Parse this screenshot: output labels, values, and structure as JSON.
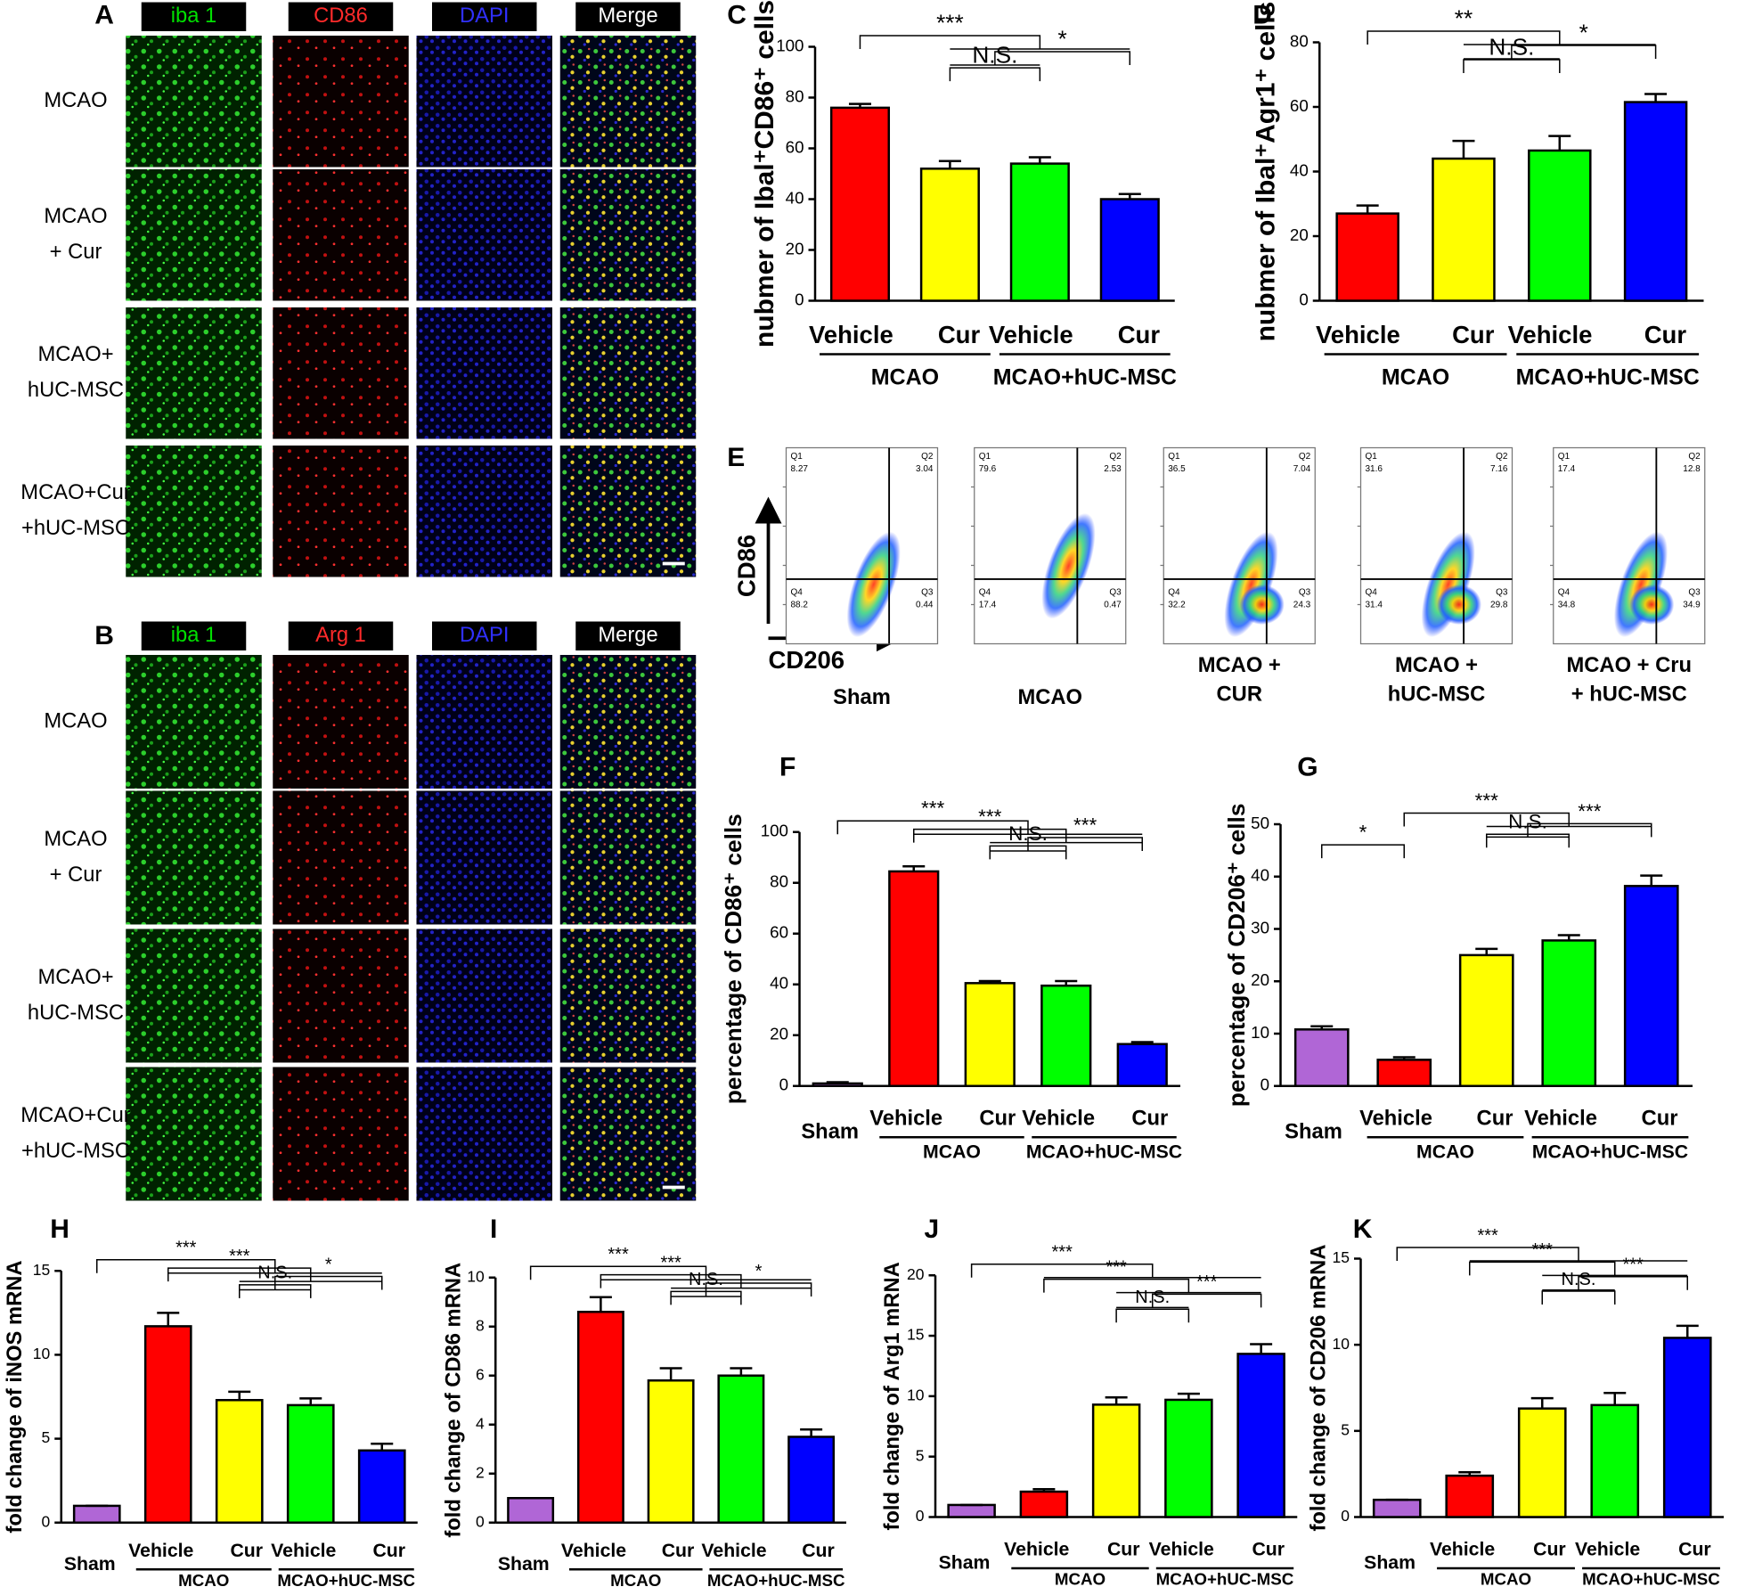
{
  "microscopy": [
    {
      "panel": "A",
      "channels": [
        "iba 1",
        "CD86",
        "DAPI",
        "Merge"
      ],
      "channel_colors": [
        "#00e000",
        "#ff2a2a",
        "#3030ff",
        "#ffffff"
      ],
      "rows": [
        [
          "MCAO"
        ],
        [
          "MCAO",
          "+ Cur"
        ],
        [
          "MCAO+",
          "hUC-MSC"
        ],
        [
          "MCAO+Cur",
          "+hUC-MSC"
        ]
      ]
    },
    {
      "panel": "B",
      "channels": [
        "iba 1",
        "Arg 1",
        "DAPI",
        "Merge"
      ],
      "channel_colors": [
        "#00e000",
        "#ff2a2a",
        "#3030ff",
        "#ffffff"
      ],
      "rows": [
        [
          "MCAO"
        ],
        [
          "MCAO",
          "+ Cur"
        ],
        [
          "MCAO+",
          "hUC-MSC"
        ],
        [
          "MCAO+Cur",
          "+hUC-MSC"
        ]
      ]
    }
  ],
  "flow": {
    "panel": "E",
    "y_label": "CD86",
    "x_label": "CD206",
    "quadrants": [
      "Q1",
      "Q2",
      "Q3",
      "Q4"
    ],
    "plots": [
      {
        "label": [
          "Sham"
        ],
        "values": [
          8.27,
          3.04,
          0.44,
          88.2
        ]
      },
      {
        "label": [
          "MCAO"
        ],
        "values": [
          79.6,
          2.53,
          0.47,
          17.4
        ]
      },
      {
        "label": [
          "MCAO +",
          "CUR"
        ],
        "values": [
          36.5,
          7.04,
          24.3,
          32.2
        ]
      },
      {
        "label": [
          "MCAO +",
          "hUC-MSC"
        ],
        "values": [
          31.6,
          7.16,
          29.8,
          31.4
        ]
      },
      {
        "label": [
          "MCAO + Cru",
          "+ hUC-MSC"
        ],
        "values": [
          17.4,
          12.8,
          34.9,
          34.8
        ]
      }
    ]
  },
  "chart_data": [
    {
      "type": "bar",
      "panel": "C",
      "y_label": "nubmer of Ibal⁺CD86⁺ cells",
      "categories": [
        "Vehicle",
        "Cur",
        "Vehicle",
        "Cur"
      ],
      "groups": [
        "MCAO",
        "MCAO+hUC-MSC"
      ],
      "values": [
        76,
        52,
        54,
        40
      ],
      "errors": [
        1.5,
        3,
        2.5,
        2
      ],
      "colors": [
        "#ff0000",
        "#ffff00",
        "#00ff00",
        "#0000ff"
      ],
      "ylim": [
        0,
        100
      ],
      "yticks": [
        0,
        20,
        40,
        60,
        80,
        100
      ],
      "comparisons": [
        {
          "label": "***",
          "left": [
            0
          ],
          "right": [
            1,
            2,
            3
          ]
        },
        {
          "label": "*",
          "left": [
            1,
            2
          ],
          "right": [
            3
          ]
        },
        {
          "label": "N.S.",
          "left": [
            1
          ],
          "right": [
            2
          ]
        }
      ]
    },
    {
      "type": "bar",
      "panel": "D",
      "y_label": "nubmer of Ibal⁺Agr1⁺ cells",
      "categories": [
        "Vehicle",
        "Cur",
        "Vehicle",
        "Cur"
      ],
      "groups": [
        "MCAO",
        "MCAO+hUC-MSC"
      ],
      "values": [
        27,
        44,
        46.5,
        61.5
      ],
      "errors": [
        2.5,
        5.5,
        4.5,
        2.5
      ],
      "colors": [
        "#ff0000",
        "#ffff00",
        "#00ff00",
        "#0000ff"
      ],
      "ylim": [
        0,
        80
      ],
      "yticks": [
        0,
        20,
        40,
        60,
        80
      ],
      "comparisons": [
        {
          "label": "**",
          "left": [
            0
          ],
          "right": [
            1,
            2,
            3
          ]
        },
        {
          "label": "*",
          "left": [
            1,
            2
          ],
          "right": [
            3
          ]
        },
        {
          "label": "N.S.",
          "left": [
            1
          ],
          "right": [
            2
          ]
        }
      ]
    },
    {
      "type": "bar",
      "panel": "F",
      "y_label": "percentage of CD86⁺ cells",
      "categories": [
        "Sham",
        "Vehicle",
        "Cur",
        "Vehicle",
        "Cur"
      ],
      "groups": [
        "MCAO",
        "MCAO+hUC-MSC"
      ],
      "values": [
        1,
        84.5,
        40.5,
        39.5,
        16.5
      ],
      "errors": [
        0.5,
        2,
        0.8,
        1.8,
        0.8
      ],
      "colors": [
        "#b066d6",
        "#ff0000",
        "#ffff00",
        "#00ff00",
        "#0000ff"
      ],
      "ylim": [
        0,
        100
      ],
      "yticks": [
        0,
        20,
        40,
        60,
        80,
        100
      ],
      "comparisons": [
        {
          "label": "***",
          "left": [
            0
          ],
          "right": [
            1,
            2,
            3,
            4
          ]
        },
        {
          "label": "***",
          "left": [
            1
          ],
          "right": [
            2,
            3,
            4
          ]
        },
        {
          "label": "***",
          "left": [
            2,
            3
          ],
          "right": [
            4
          ]
        },
        {
          "label": "N.S.",
          "left": [
            2
          ],
          "right": [
            3
          ]
        }
      ]
    },
    {
      "type": "bar",
      "panel": "G",
      "y_label": "percentage of CD206⁺ cells",
      "categories": [
        "Sham",
        "Vehicle",
        "Cur",
        "Vehicle",
        "Cur"
      ],
      "groups": [
        "MCAO",
        "MCAO+hUC-MSC"
      ],
      "values": [
        10.8,
        5,
        25,
        27.8,
        38.2
      ],
      "errors": [
        0.6,
        0.5,
        1.2,
        1,
        2
      ],
      "colors": [
        "#b066d6",
        "#ff0000",
        "#ffff00",
        "#00ff00",
        "#0000ff"
      ],
      "ylim": [
        0,
        50
      ],
      "yticks": [
        0,
        10,
        20,
        30,
        40,
        50
      ],
      "comparisons": [
        {
          "label": "***",
          "left": [
            1
          ],
          "right": [
            2,
            3,
            4
          ]
        },
        {
          "label": "***",
          "left": [
            2,
            3
          ],
          "right": [
            4
          ]
        },
        {
          "label": "N.S.",
          "left": [
            2
          ],
          "right": [
            3
          ]
        },
        {
          "label": "*",
          "left": [
            0
          ],
          "right": [
            1
          ]
        }
      ]
    },
    {
      "type": "bar",
      "panel": "H",
      "y_label": "fold change of iNOS mRNA",
      "categories": [
        "Sham",
        "Vehicle",
        "Cur",
        "Vehicle",
        "Cur"
      ],
      "groups": [
        "MCAO",
        "MCAO+hUC-MSC"
      ],
      "values": [
        1,
        11.7,
        7.3,
        7,
        4.3
      ],
      "errors": [
        0,
        0.8,
        0.5,
        0.4,
        0.4
      ],
      "colors": [
        "#b066d6",
        "#ff0000",
        "#ffff00",
        "#00ff00",
        "#0000ff"
      ],
      "ylim": [
        0,
        15
      ],
      "yticks": [
        0,
        5,
        10,
        15
      ],
      "comparisons": [
        {
          "label": "***",
          "left": [
            0
          ],
          "right": [
            1,
            2,
            3,
            4
          ]
        },
        {
          "label": "***",
          "left": [
            1
          ],
          "right": [
            2,
            3,
            4
          ]
        },
        {
          "label": "*",
          "left": [
            2,
            3
          ],
          "right": [
            4
          ]
        },
        {
          "label": "N.S.",
          "left": [
            2
          ],
          "right": [
            3
          ]
        }
      ]
    },
    {
      "type": "bar",
      "panel": "I",
      "y_label": "fold change of CD86 mRNA",
      "categories": [
        "Sham",
        "Vehicle",
        "Cur",
        "Vehicle",
        "Cur"
      ],
      "groups": [
        "MCAO",
        "MCAO+hUC-MSC"
      ],
      "values": [
        1,
        8.6,
        5.8,
        6,
        3.5
      ],
      "errors": [
        0,
        0.6,
        0.5,
        0.3,
        0.3
      ],
      "colors": [
        "#b066d6",
        "#ff0000",
        "#ffff00",
        "#00ff00",
        "#0000ff"
      ],
      "ylim": [
        0,
        10
      ],
      "yticks": [
        0,
        2,
        4,
        6,
        8,
        10
      ],
      "comparisons": [
        {
          "label": "***",
          "left": [
            0
          ],
          "right": [
            1,
            2,
            3,
            4
          ]
        },
        {
          "label": "***",
          "left": [
            1
          ],
          "right": [
            2,
            3,
            4
          ]
        },
        {
          "label": "*",
          "left": [
            2,
            3
          ],
          "right": [
            4
          ]
        },
        {
          "label": "N.S.",
          "left": [
            2
          ],
          "right": [
            3
          ]
        }
      ]
    },
    {
      "type": "bar",
      "panel": "J",
      "y_label": "fold change of Arg1 mRNA",
      "categories": [
        "Sham",
        "Vehicle",
        "Cur",
        "Vehicle",
        "Cur"
      ],
      "groups": [
        "MCAO",
        "MCAO+hUC-MSC"
      ],
      "values": [
        1,
        2.1,
        9.3,
        9.7,
        13.5
      ],
      "errors": [
        0,
        0.2,
        0.6,
        0.5,
        0.8
      ],
      "colors": [
        "#b066d6",
        "#ff0000",
        "#ffff00",
        "#00ff00",
        "#0000ff"
      ],
      "ylim": [
        0,
        20
      ],
      "yticks": [
        0,
        5,
        10,
        15,
        20
      ],
      "comparisons": [
        {
          "label": "***",
          "left": [
            0
          ],
          "right": [
            1,
            2,
            3,
            4
          ]
        },
        {
          "label": "***",
          "left": [
            1
          ],
          "right": [
            2,
            3,
            4
          ]
        },
        {
          "label": "***",
          "left": [
            2,
            3
          ],
          "right": [
            4
          ]
        },
        {
          "label": "N.S.",
          "left": [
            2
          ],
          "right": [
            3
          ]
        }
      ]
    },
    {
      "type": "bar",
      "panel": "K",
      "y_label": "fold change of CD206 mRNA",
      "categories": [
        "Sham",
        "Vehicle",
        "Cur",
        "Vehicle",
        "Cur"
      ],
      "groups": [
        "MCAO",
        "MCAO+hUC-MSC"
      ],
      "values": [
        1,
        2.4,
        6.3,
        6.5,
        10.4
      ],
      "errors": [
        0,
        0.2,
        0.6,
        0.7,
        0.7
      ],
      "colors": [
        "#b066d6",
        "#ff0000",
        "#ffff00",
        "#00ff00",
        "#0000ff"
      ],
      "ylim": [
        0,
        15
      ],
      "yticks": [
        0,
        5,
        10,
        15
      ],
      "comparisons": [
        {
          "label": "***",
          "left": [
            0
          ],
          "right": [
            1,
            2,
            3,
            4
          ]
        },
        {
          "label": "***",
          "left": [
            1
          ],
          "right": [
            2,
            3,
            4
          ]
        },
        {
          "label": "***",
          "left": [
            2,
            3
          ],
          "right": [
            4
          ]
        },
        {
          "label": "N.S.",
          "left": [
            2
          ],
          "right": [
            3
          ]
        }
      ]
    }
  ]
}
